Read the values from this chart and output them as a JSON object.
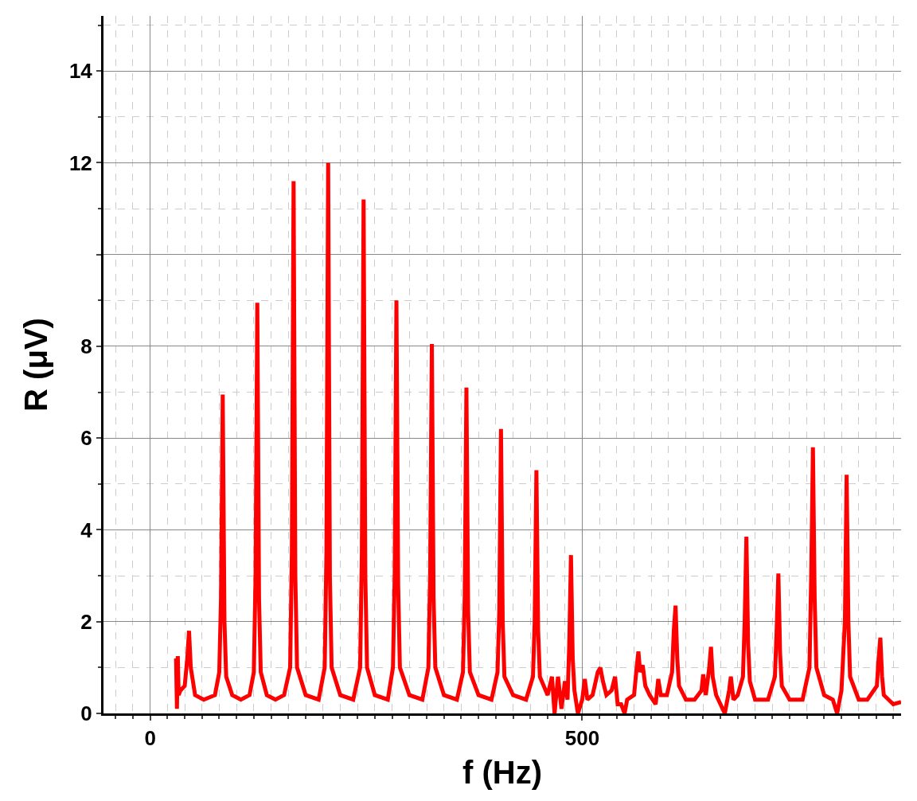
{
  "chart_data": {
    "type": "line",
    "xlabel": "f (Hz)",
    "ylabel": "R (μV)",
    "xlim": [
      -54,
      869
    ],
    "ylim": [
      0,
      15.2
    ],
    "xticks": [
      0,
      500
    ],
    "yticks": [
      0,
      2,
      4,
      6,
      8,
      {
        "value": 10,
        "label": null
      },
      12,
      14
    ],
    "grid": true,
    "marker": "none",
    "line_style": "solid",
    "series": [
      {
        "color": "#ff0000",
        "x": [
          30,
          31,
          32,
          33,
          35,
          40,
          43,
          45,
          47,
          52,
          62,
          75,
          80,
          82,
          84,
          86,
          88,
          95,
          105,
          115,
          120,
          122,
          124,
          126,
          128,
          135,
          145,
          155,
          162,
          164,
          166,
          168,
          170,
          180,
          195,
          202,
          204,
          206,
          208,
          210,
          220,
          235,
          243,
          245,
          247,
          249,
          251,
          260,
          275,
          281,
          283,
          285,
          287,
          289,
          300,
          315,
          322,
          324,
          326,
          328,
          330,
          340,
          355,
          362,
          364,
          366,
          368,
          370,
          380,
          395,
          402,
          404,
          406,
          408,
          410,
          420,
          435,
          443,
          445,
          447,
          449,
          451,
          460,
          465,
          468,
          472,
          476,
          480,
          483,
          485,
          487,
          489,
          491,
          495,
          500,
          503,
          506,
          512,
          518,
          521,
          524,
          528,
          534,
          538,
          541,
          545,
          549,
          552,
          560,
          563,
          565,
          567,
          570,
          573,
          578,
          585,
          588,
          591,
          598,
          604,
          606,
          608,
          610,
          612,
          620,
          630,
          638,
          640,
          643,
          647,
          649,
          651,
          655,
          660,
          665,
          670,
          672,
          675,
          680,
          686,
          688,
          690,
          692,
          694,
          700,
          715,
          723,
          725,
          727,
          729,
          731,
          740,
          755,
          763,
          765,
          767,
          769,
          771,
          780,
          790,
          795,
          800,
          804,
          806,
          808,
          810,
          820,
          830,
          841,
          843,
          845,
          847,
          849,
          860,
          869
        ],
        "values": [
          1.2,
          0.1,
          1.25,
          0.4,
          0.5,
          0.6,
          1.2,
          1.8,
          1.0,
          0.4,
          0.3,
          0.4,
          0.9,
          2.5,
          6.95,
          2.0,
          0.8,
          0.4,
          0.3,
          0.4,
          0.9,
          3.0,
          8.95,
          2.5,
          0.9,
          0.4,
          0.3,
          0.4,
          1.0,
          3.5,
          11.6,
          3.0,
          1.0,
          0.4,
          0.3,
          1.0,
          3.5,
          12.0,
          3.0,
          1.0,
          0.4,
          0.3,
          1.0,
          3.5,
          11.2,
          3.0,
          1.0,
          0.4,
          0.3,
          1.0,
          3.0,
          9.0,
          2.8,
          1.0,
          0.4,
          0.3,
          1.0,
          3.0,
          8.05,
          2.5,
          1.0,
          0.4,
          0.3,
          0.9,
          2.5,
          7.1,
          2.2,
          0.9,
          0.4,
          0.3,
          0.9,
          2.2,
          6.2,
          2.0,
          0.8,
          0.4,
          0.3,
          0.8,
          2.0,
          5.3,
          1.8,
          0.8,
          0.4,
          0.8,
          0.0,
          0.8,
          0.1,
          0.7,
          0.3,
          1.5,
          3.45,
          1.2,
          0.5,
          0.0,
          0.3,
          0.75,
          0.3,
          0.4,
          0.9,
          1.0,
          0.7,
          0.4,
          0.5,
          0.8,
          0.2,
          0.2,
          0.0,
          0.3,
          0.4,
          1.0,
          1.35,
          0.9,
          1.05,
          0.6,
          0.4,
          0.2,
          0.75,
          0.4,
          0.4,
          0.9,
          1.8,
          2.35,
          1.2,
          0.6,
          0.3,
          0.3,
          0.5,
          0.85,
          0.4,
          1.0,
          1.45,
          0.8,
          0.4,
          0.2,
          0.0,
          0.5,
          0.8,
          0.3,
          0.4,
          0.8,
          2.0,
          3.85,
          1.5,
          0.7,
          0.3,
          0.3,
          0.8,
          1.8,
          3.05,
          1.3,
          0.6,
          0.3,
          0.3,
          1.0,
          3.0,
          5.8,
          2.5,
          1.0,
          0.4,
          0.3,
          0.0,
          0.5,
          2.0,
          5.2,
          2.0,
          0.8,
          0.3,
          0.3,
          0.6,
          1.2,
          1.65,
          0.8,
          0.4,
          0.2,
          0.25
        ]
      }
    ]
  }
}
